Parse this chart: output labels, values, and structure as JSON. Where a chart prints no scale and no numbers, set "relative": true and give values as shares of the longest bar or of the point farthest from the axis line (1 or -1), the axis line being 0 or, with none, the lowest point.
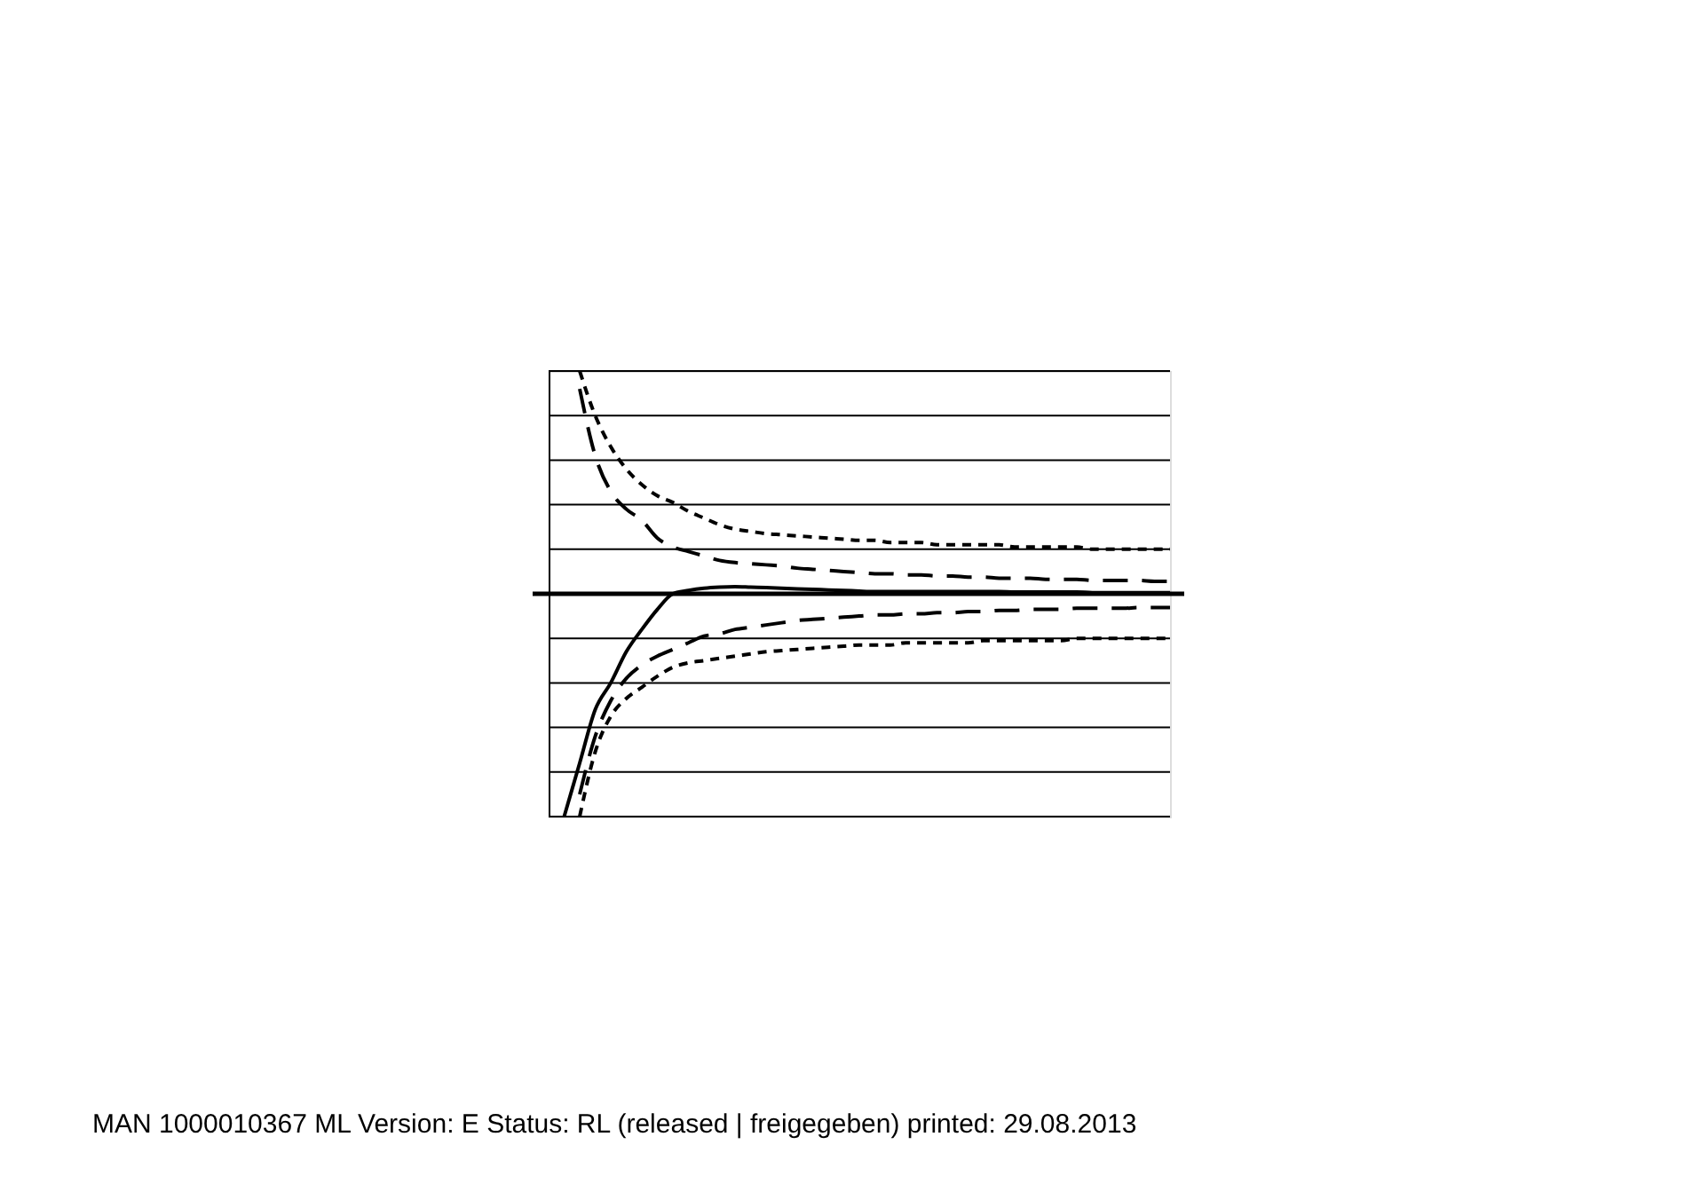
{
  "chart_data": {
    "type": "line",
    "relative": true,
    "grid": "y",
    "categories": [
      null,
      null,
      null,
      null,
      null,
      null,
      null,
      null,
      null,
      null,
      null,
      null,
      null,
      null,
      null,
      null,
      null,
      null,
      null,
      null,
      null,
      null,
      null,
      null,
      null,
      null,
      null,
      null,
      null,
      null,
      null,
      null,
      null,
      null,
      null,
      null,
      null,
      null,
      null,
      null,
      null
    ],
    "series": [
      {
        "color": "#000000",
        "line_style": "solid",
        "values": [
          null,
          -1,
          -0.76,
          -0.52,
          -0.4,
          -0.26,
          -0.16,
          -0.07,
          0,
          0.015,
          0.025,
          0.03,
          0.032,
          0.03,
          0.028,
          0.025,
          0.022,
          0.02,
          0.017,
          0.015,
          0.012,
          0.01,
          0.01,
          0.01,
          0.01,
          0.01,
          0.01,
          0.01,
          0.01,
          0.01,
          0.008,
          0.008,
          0.008,
          0.008,
          0.008,
          0.005,
          0.005,
          0.005,
          0.005,
          0.005,
          0.005
        ]
      },
      {
        "color": "#000000",
        "line_style": "dashed",
        "values": [
          null,
          null,
          1,
          0.8,
          0.66,
          0.56,
          0.49,
          0.44,
          0.41,
          0.37,
          0.34,
          0.31,
          0.29,
          0.28,
          0.27,
          0.265,
          0.26,
          0.255,
          0.25,
          0.245,
          0.24,
          0.24,
          0.23,
          0.23,
          0.23,
          0.22,
          0.22,
          0.22,
          0.22,
          0.22,
          0.21,
          0.21,
          0.21,
          0.21,
          0.21,
          0.2,
          0.2,
          0.2,
          0.2,
          0.2,
          0.2
        ]
      },
      {
        "color": "#000000",
        "line_style": "dashed",
        "values": [
          null,
          null,
          -1,
          -0.71,
          -0.55,
          -0.47,
          -0.42,
          -0.37,
          -0.33,
          -0.31,
          -0.3,
          -0.29,
          -0.28,
          -0.27,
          -0.26,
          -0.255,
          -0.25,
          -0.245,
          -0.24,
          -0.235,
          -0.23,
          -0.23,
          -0.23,
          -0.22,
          -0.22,
          -0.22,
          -0.22,
          -0.22,
          -0.21,
          -0.21,
          -0.21,
          -0.21,
          -0.21,
          -0.21,
          -0.2,
          -0.2,
          -0.2,
          -0.2,
          -0.2,
          -0.2,
          -0.2
        ]
      },
      {
        "color": "#000000",
        "line_style": "longdash",
        "values": [
          null,
          null,
          0.92,
          0.62,
          0.46,
          0.38,
          0.33,
          0.25,
          0.21,
          0.19,
          0.17,
          0.15,
          0.14,
          0.135,
          0.13,
          0.125,
          0.115,
          0.11,
          0.105,
          0.1,
          0.095,
          0.09,
          0.09,
          0.085,
          0.085,
          0.08,
          0.08,
          0.075,
          0.075,
          0.07,
          0.07,
          0.07,
          0.065,
          0.065,
          0.065,
          0.06,
          0.06,
          0.06,
          0.06,
          0.056,
          0.056
        ]
      },
      {
        "color": "#000000",
        "line_style": "longdash",
        "values": [
          null,
          null,
          -0.9,
          -0.64,
          -0.48,
          -0.38,
          -0.32,
          -0.28,
          -0.25,
          -0.22,
          -0.19,
          -0.18,
          -0.16,
          -0.15,
          -0.14,
          -0.13,
          -0.12,
          -0.115,
          -0.11,
          -0.105,
          -0.1,
          -0.095,
          -0.095,
          -0.09,
          -0.09,
          -0.085,
          -0.085,
          -0.08,
          -0.08,
          -0.075,
          -0.075,
          -0.07,
          -0.07,
          -0.07,
          -0.065,
          -0.065,
          -0.065,
          -0.065,
          -0.062,
          -0.062,
          -0.062
        ]
      }
    ],
    "annotations": [
      "MAN  1000010367  ML  Version: E Status: RL (released | freigegeben)  printed: 29.08.2013"
    ]
  }
}
